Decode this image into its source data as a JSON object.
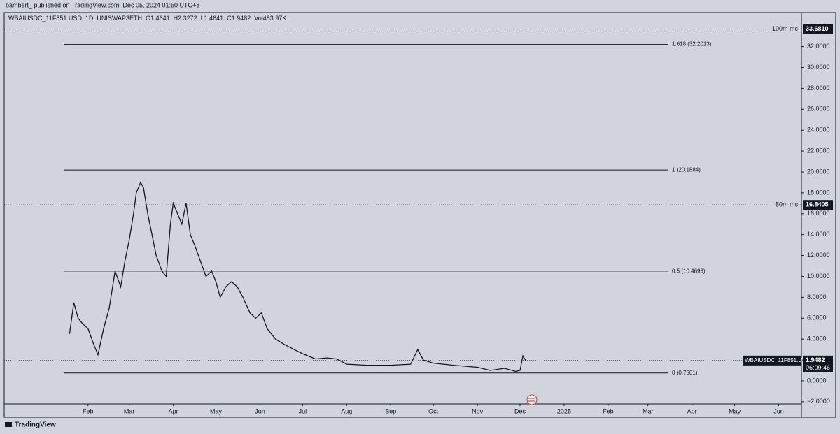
{
  "header": {
    "publisher": "bambert_ published on TradingView.com, Dec 05, 2024 01:50 UTC+8"
  },
  "footer": {
    "brand": "TradingView"
  },
  "chart_data": {
    "type": "line",
    "legend": {
      "symbol": "WBAIUSDC_11F851.USD, 1D, UNISWAP3ETH",
      "open": "O1.4641",
      "high": "H2.3272",
      "low": "L1.4641",
      "close": "C1.9482",
      "volume": "Vol483.97K"
    },
    "xlim": [
      "2023-12-04",
      "2025-06-17"
    ],
    "xticks": [
      {
        "value": "2024-02-01",
        "label": "Feb"
      },
      {
        "value": "2024-03-01",
        "label": "Mar"
      },
      {
        "value": "2024-04-01",
        "label": "Apr"
      },
      {
        "value": "2024-05-01",
        "label": "May"
      },
      {
        "value": "2024-06-01",
        "label": "Jun"
      },
      {
        "value": "2024-07-01",
        "label": "Jul"
      },
      {
        "value": "2024-08-01",
        "label": "Aug"
      },
      {
        "value": "2024-09-01",
        "label": "Sep"
      },
      {
        "value": "2024-10-01",
        "label": "Oct"
      },
      {
        "value": "2024-11-01",
        "label": "Nov"
      },
      {
        "value": "2024-12-01",
        "label": "Dec"
      },
      {
        "value": "2025-01-01",
        "label": "2025"
      },
      {
        "value": "2025-02-01",
        "label": "Feb"
      },
      {
        "value": "2025-03-01",
        "label": "Mar"
      },
      {
        "value": "2025-04-01",
        "label": "Apr"
      },
      {
        "value": "2025-05-01",
        "label": "May"
      },
      {
        "value": "2025-06-01",
        "label": "Jun"
      }
    ],
    "ylim": [
      -3.48,
      35.25
    ],
    "yticks": [
      {
        "value": -2,
        "label": "−2.0000"
      },
      {
        "value": 0,
        "label": "0.0000"
      },
      {
        "value": 2,
        "label": "2.0000"
      },
      {
        "value": 4,
        "label": "4.0000"
      },
      {
        "value": 6,
        "label": "6.0000"
      },
      {
        "value": 8,
        "label": "8.0000"
      },
      {
        "value": 10,
        "label": "10.0000"
      },
      {
        "value": 12,
        "label": "12.0000"
      },
      {
        "value": 14,
        "label": "14.0000"
      },
      {
        "value": 16,
        "label": "16.0000"
      },
      {
        "value": 18,
        "label": "18.0000"
      },
      {
        "value": 20,
        "label": "20.0000"
      },
      {
        "value": 22,
        "label": "22.0000"
      },
      {
        "value": 24,
        "label": "24.0000"
      },
      {
        "value": 26,
        "label": "26.0000"
      },
      {
        "value": 28,
        "label": "28.0000"
      },
      {
        "value": 30,
        "label": "30.0000"
      },
      {
        "value": 32,
        "label": "32.0000"
      }
    ],
    "series": [
      {
        "name": "WBAIUSDC_11F851.USD",
        "color": "#131722",
        "x": [
          "2024-01-19",
          "2024-01-22",
          "2024-01-25",
          "2024-01-28",
          "2024-02-01",
          "2024-02-05",
          "2024-02-08",
          "2024-02-12",
          "2024-02-16",
          "2024-02-20",
          "2024-02-24",
          "2024-02-27",
          "2024-03-01",
          "2024-03-04",
          "2024-03-06",
          "2024-03-09",
          "2024-03-11",
          "2024-03-14",
          "2024-03-17",
          "2024-03-20",
          "2024-03-24",
          "2024-03-27",
          "2024-03-30",
          "2024-04-01",
          "2024-04-04",
          "2024-04-07",
          "2024-04-10",
          "2024-04-13",
          "2024-04-16",
          "2024-04-20",
          "2024-04-24",
          "2024-04-28",
          "2024-05-01",
          "2024-05-04",
          "2024-05-08",
          "2024-05-12",
          "2024-05-16",
          "2024-05-20",
          "2024-05-25",
          "2024-05-29",
          "2024-06-02",
          "2024-06-06",
          "2024-06-12",
          "2024-06-18",
          "2024-06-25",
          "2024-07-01",
          "2024-07-10",
          "2024-07-18",
          "2024-07-25",
          "2024-08-01",
          "2024-08-15",
          "2024-09-01",
          "2024-09-15",
          "2024-09-20",
          "2024-09-24",
          "2024-10-01",
          "2024-10-15",
          "2024-11-01",
          "2024-11-10",
          "2024-11-20",
          "2024-11-28",
          "2024-12-01",
          "2024-12-03",
          "2024-12-05"
        ],
        "values": [
          4.5,
          7.5,
          6.0,
          5.5,
          5.0,
          3.5,
          2.5,
          5.0,
          7.0,
          10.5,
          9.0,
          11.5,
          13.5,
          16,
          18,
          19,
          18.5,
          16,
          14,
          12,
          10.5,
          10,
          15,
          17,
          16,
          15,
          17,
          14,
          13,
          11.5,
          10,
          10.5,
          9.5,
          8,
          9,
          9.5,
          9,
          8,
          6.5,
          6,
          6.5,
          5,
          4,
          3.5,
          3.0,
          2.6,
          2.1,
          2.2,
          2.1,
          1.6,
          1.5,
          1.5,
          1.6,
          3.0,
          2.0,
          1.7,
          1.5,
          1.3,
          1.0,
          1.2,
          0.9,
          1.0,
          2.4,
          1.9482
        ]
      }
    ],
    "levels": [
      {
        "value": 32.2013,
        "label": "1.618 (32.2013)"
      },
      {
        "value": 20.1884,
        "label": "1 (20.1884)"
      },
      {
        "value": 10.4693,
        "label": "0.5 (10.4693)"
      },
      {
        "value": 0.7501,
        "label": "0 (0.7501)"
      }
    ],
    "price_lines": [
      {
        "name": "100m mc",
        "price": {
          "value": 33.681,
          "label": "33.6810"
        }
      },
      {
        "name": "50m mc",
        "price": 16.8405
      }
    ],
    "last": {
      "name": "WBAIUSDC_11F851.USD",
      "price": 1.9482,
      "countdown": "06:09:46"
    }
  }
}
